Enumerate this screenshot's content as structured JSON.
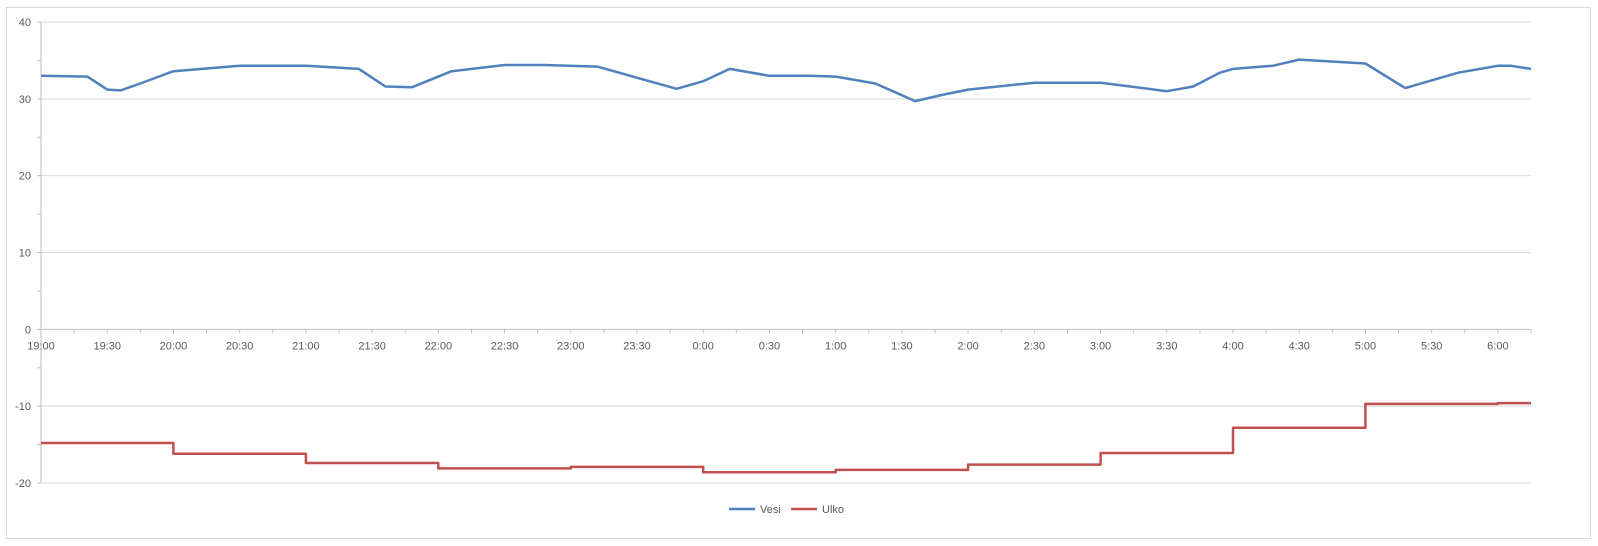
{
  "chart_data": {
    "type": "line",
    "x_tick_labels": [
      "19:00",
      "19:30",
      "20:00",
      "20:30",
      "21:00",
      "21:30",
      "22:00",
      "22:30",
      "23:00",
      "23:30",
      "0:00",
      "0:30",
      "1:00",
      "1:30",
      "2:00",
      "2:30",
      "3:00",
      "3:30",
      "4:00",
      "4:30",
      "5:00",
      "5:30",
      "6:00"
    ],
    "x_range_hours": [
      0,
      11.25
    ],
    "ylim": [
      -20,
      40
    ],
    "y_ticks": [
      -20,
      -10,
      0,
      10,
      20,
      30,
      40
    ],
    "grid": true,
    "legend_position": "bottom",
    "series": [
      {
        "name": "Vesi",
        "color": "#4f81bd",
        "x": [
          0,
          0.35,
          0.5,
          0.6,
          0.75,
          1.0,
          1.5,
          2.0,
          2.4,
          2.6,
          2.8,
          3.1,
          3.3,
          3.5,
          3.8,
          4.2,
          4.8,
          5.0,
          5.2,
          5.5,
          5.8,
          6.0,
          6.3,
          6.6,
          6.8,
          7.0,
          7.5,
          8.0,
          8.5,
          8.7,
          8.9,
          9.0,
          9.3,
          9.5,
          10.0,
          10.3,
          10.7,
          11.0,
          11.1,
          11.25
        ],
        "y": [
          33.0,
          32.9,
          31.2,
          31.1,
          32.0,
          33.6,
          34.3,
          34.3,
          33.9,
          31.6,
          31.5,
          33.6,
          34.0,
          34.4,
          34.4,
          34.2,
          31.3,
          32.3,
          33.9,
          33.0,
          33.0,
          32.9,
          32.0,
          29.7,
          30.5,
          31.2,
          32.1,
          32.1,
          31.0,
          31.6,
          33.4,
          33.9,
          34.3,
          35.1,
          34.6,
          31.4,
          33.4,
          34.3,
          34.3,
          33.9
        ]
      },
      {
        "name": "Ulko",
        "color": "#c0504d",
        "x": [
          0,
          1.0,
          1.0,
          2.0,
          2.0,
          3.0,
          3.0,
          4.0,
          4.0,
          5.0,
          5.0,
          6.0,
          6.0,
          7.0,
          7.0,
          8.0,
          8.0,
          9.0,
          9.0,
          10.0,
          10.0,
          11.0,
          11.0,
          11.25
        ],
        "y": [
          -14.8,
          -14.8,
          -16.2,
          -16.2,
          -17.4,
          -17.4,
          -18.1,
          -18.1,
          -17.9,
          -17.9,
          -18.6,
          -18.6,
          -18.3,
          -18.3,
          -17.6,
          -17.6,
          -16.1,
          -16.1,
          -12.8,
          -12.8,
          -9.7,
          -9.7,
          -9.6,
          -9.6
        ]
      }
    ]
  }
}
